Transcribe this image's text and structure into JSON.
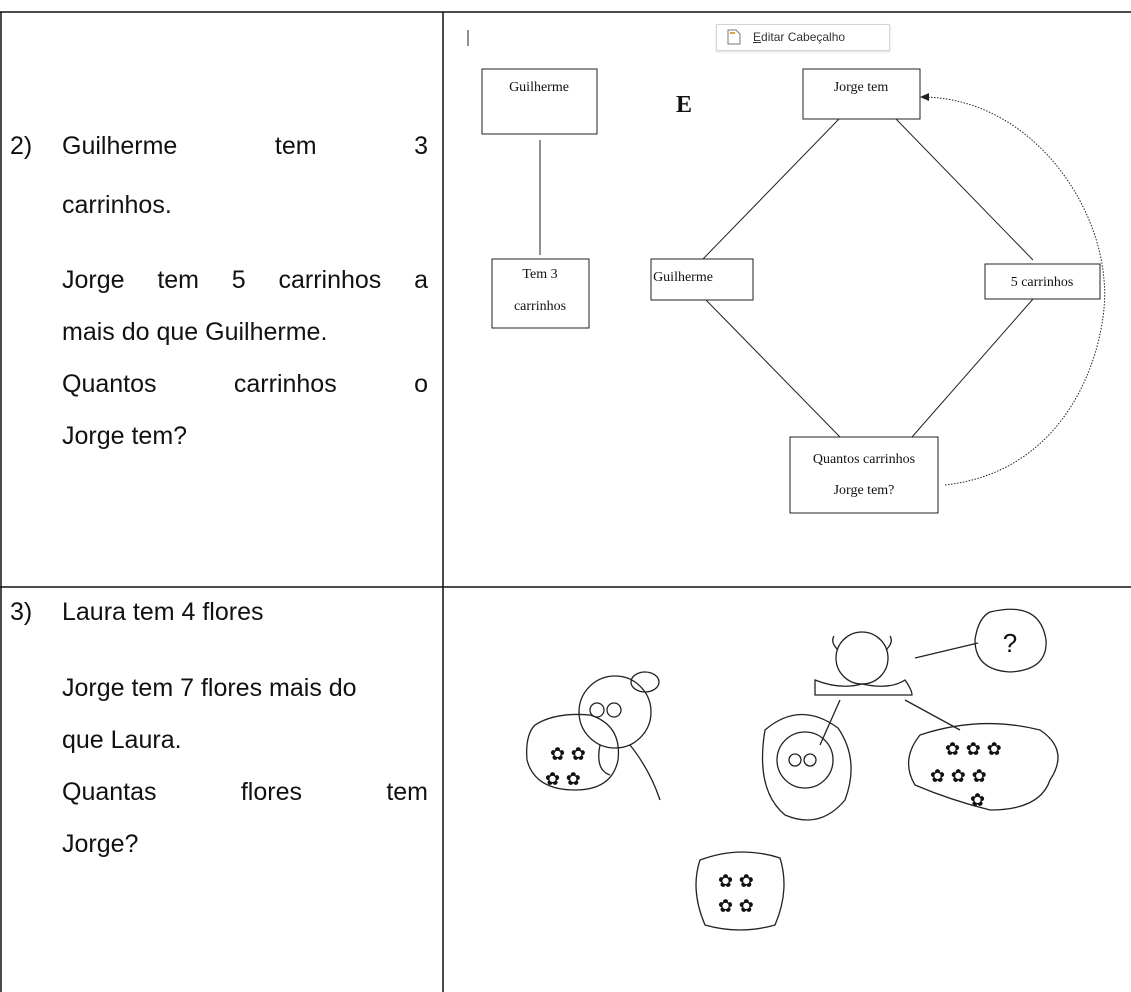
{
  "header_tooltip": "Editar Cabeçalho",
  "table": {
    "rows": [
      {
        "number": "2)",
        "lines": [
          "Guilherme tem 3",
          "carrinhos.",
          "Jorge tem 5 carrinhos a",
          "mais do que Guilherme.",
          "Quantos carrinhos o",
          "Jorge tem?"
        ],
        "diagram": {
          "connector": "E",
          "nodes": [
            {
              "lines": [
                "Guilherme"
              ]
            },
            {
              "lines": [
                "Jorge tem"
              ]
            },
            {
              "lines": [
                "Tem 3",
                "carrinhos"
              ]
            },
            {
              "lines": [
                "Guilherme"
              ]
            },
            {
              "lines": [
                "5 carrinhos"
              ]
            },
            {
              "lines": [
                "Quantos carrinhos",
                "Jorge tem?"
              ]
            }
          ]
        }
      },
      {
        "number": "3)",
        "lines": [
          "Laura tem 4 flores",
          "Jorge tem 7 flores mais do",
          "que Laura.",
          "Quantas flores tem",
          "Jorge?"
        ],
        "drawing": {
          "bubble": "?"
        }
      }
    ]
  }
}
